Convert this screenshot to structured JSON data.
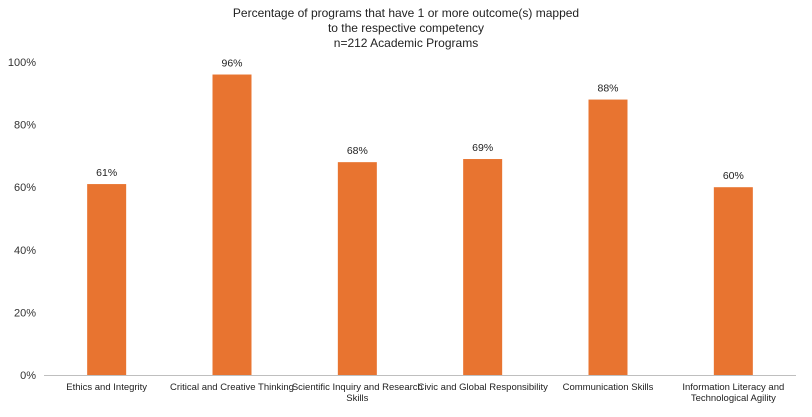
{
  "chart_data": {
    "type": "bar",
    "title": [
      "Percentage of programs that have 1 or more outcome(s) mapped",
      "to the respective competency",
      "n=212 Academic Programs"
    ],
    "xlabel": "",
    "ylabel": "",
    "ylim": [
      0,
      100
    ],
    "yticks": [
      "0%",
      "20%",
      "40%",
      "60%",
      "80%",
      "100%"
    ],
    "grid": false,
    "legend": "none",
    "bar_color": "#E87430",
    "categories": [
      [
        "Ethics and Integrity"
      ],
      [
        "Critical and Creative Thinking"
      ],
      [
        "Scientific Inquiry and Research",
        "Skills"
      ],
      [
        "Civic and Global Responsibility"
      ],
      [
        "Communication Skills"
      ],
      [
        "Information Literacy and",
        "Technological Agility"
      ]
    ],
    "values": [
      61,
      96,
      68,
      69,
      88,
      60
    ],
    "data_labels": [
      "61%",
      "96%",
      "68%",
      "69%",
      "88%",
      "60%"
    ]
  }
}
